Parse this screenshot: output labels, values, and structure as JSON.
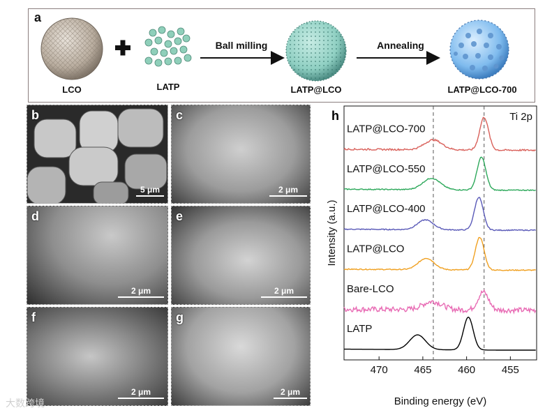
{
  "panel_a": {
    "label": "a",
    "captions": {
      "lco": "LCO",
      "latp": "LATP",
      "latp_lco": "LATP@LCO",
      "latp_lco_700": "LATP@LCO-700"
    },
    "plus": "+",
    "arrow_1": "Ball milling",
    "arrow_2": "Annealing"
  },
  "sem_panels": [
    {
      "label": "b",
      "scale": "5 μm"
    },
    {
      "label": "c",
      "scale": "2 μm"
    },
    {
      "label": "d",
      "scale": "2 μm"
    },
    {
      "label": "e",
      "scale": "2 μm"
    },
    {
      "label": "f",
      "scale": "2 μm"
    },
    {
      "label": "g",
      "scale": "2 μm"
    }
  ],
  "panel_h": {
    "label": "h",
    "annotation": "Ti 2p"
  },
  "watermark": "大数跨境",
  "chart_data": {
    "type": "line",
    "title": "",
    "xlabel": "Binding energy (eV)",
    "ylabel": "Intensity (a.u.)",
    "xlim": [
      474,
      452
    ],
    "x_ticks": [
      470,
      465,
      460,
      455
    ],
    "x_reversed": true,
    "y_ticks_shown": false,
    "reference_lines_ev": [
      463.8,
      458.0
    ],
    "series": [
      {
        "name": "LATP",
        "color": "#000000",
        "peaks": [
          {
            "center": 465.6,
            "height": 0.45,
            "width": 0.9
          },
          {
            "center": 459.8,
            "height": 1.0,
            "width": 0.55
          }
        ],
        "noise": 0.0
      },
      {
        "name": "Bare-LCO",
        "color": "#e86bb4",
        "peaks": [
          {
            "center": 463.9,
            "height": 0.25,
            "width": 1.1
          },
          {
            "center": 458.1,
            "height": 0.55,
            "width": 0.6
          }
        ],
        "noise": 0.16
      },
      {
        "name": "LATP@LCO",
        "color": "#f0a020",
        "peaks": [
          {
            "center": 464.6,
            "height": 0.35,
            "width": 0.9
          },
          {
            "center": 458.5,
            "height": 1.0,
            "width": 0.5
          }
        ],
        "noise": 0.03
      },
      {
        "name": "LATP@LCO-400",
        "color": "#5a5ab8",
        "peaks": [
          {
            "center": 464.7,
            "height": 0.3,
            "width": 0.9
          },
          {
            "center": 458.6,
            "height": 1.0,
            "width": 0.5
          }
        ],
        "noise": 0.03
      },
      {
        "name": "LATP@LCO-550",
        "color": "#2ca85a",
        "peaks": [
          {
            "center": 464.0,
            "height": 0.35,
            "width": 1.0
          },
          {
            "center": 458.3,
            "height": 1.0,
            "width": 0.5
          }
        ],
        "noise": 0.03
      },
      {
        "name": "LATP@LCO-700",
        "color": "#d9605a",
        "peaks": [
          {
            "center": 463.8,
            "height": 0.3,
            "width": 1.0
          },
          {
            "center": 458.0,
            "height": 1.0,
            "width": 0.5
          }
        ],
        "noise": 0.05
      }
    ]
  }
}
